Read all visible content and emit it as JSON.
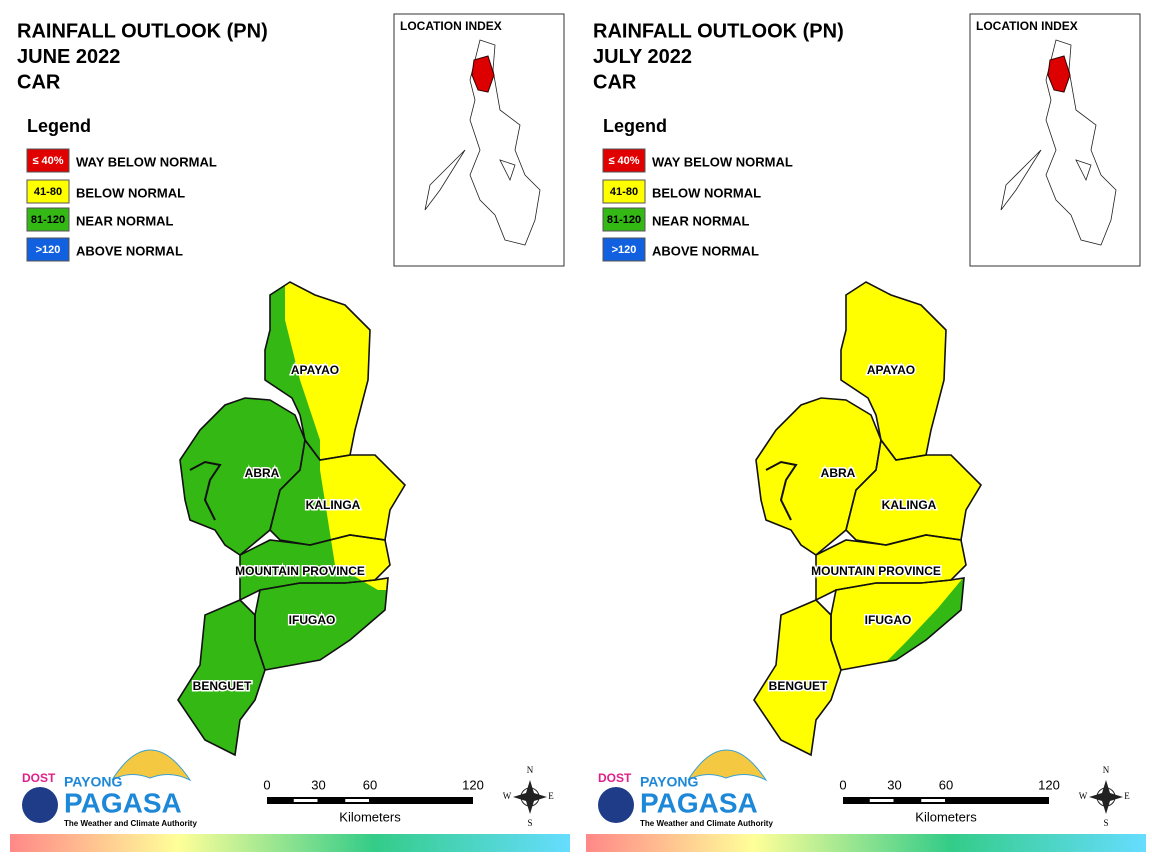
{
  "panels": [
    {
      "title": [
        "RAINFALL OUTLOOK (PN)",
        "JUNE 2022",
        "CAR"
      ],
      "legend": {
        "title": "Legend",
        "items": [
          {
            "swatch": "≤ 40%",
            "label": "WAY BELOW NORMAL",
            "color": "#e00000"
          },
          {
            "swatch": "41-80",
            "label": "BELOW NORMAL",
            "color": "#ffff00"
          },
          {
            "swatch": "81-120",
            "label": "NEAR NORMAL",
            "color": "#33b814"
          },
          {
            "swatch": ">120",
            "label": "ABOVE NORMAL",
            "color": "#1060e0"
          }
        ]
      },
      "index_title": "LOCATION INDEX",
      "regions": [
        "APAYAO",
        "ABRA",
        "KALINGA",
        "MOUNTAIN PROVINCE",
        "IFUGAO",
        "BENGUET"
      ],
      "scale": {
        "ticks": [
          0,
          30,
          60,
          120
        ],
        "unit": "Kilometers"
      },
      "compass": [
        "N",
        "E",
        "S",
        "W"
      ],
      "logo": {
        "agency": "DOST",
        "brand": "PAYONG",
        "name": "PAGASA",
        "tagline": "The Weather and Climate Authority"
      }
    },
    {
      "title": [
        "RAINFALL OUTLOOK (PN)",
        "JULY 2022",
        "CAR"
      ],
      "legend": {
        "title": "Legend",
        "items": [
          {
            "swatch": "≤ 40%",
            "label": "WAY BELOW NORMAL",
            "color": "#e00000"
          },
          {
            "swatch": "41-80",
            "label": "BELOW NORMAL",
            "color": "#ffff00"
          },
          {
            "swatch": "81-120",
            "label": "NEAR NORMAL",
            "color": "#33b814"
          },
          {
            "swatch": ">120",
            "label": "ABOVE NORMAL",
            "color": "#1060e0"
          }
        ]
      },
      "index_title": "LOCATION INDEX",
      "regions": [
        "APAYAO",
        "ABRA",
        "KALINGA",
        "MOUNTAIN PROVINCE",
        "IFUGAO",
        "BENGUET"
      ],
      "scale": {
        "ticks": [
          0,
          30,
          60,
          120
        ],
        "unit": "Kilometers"
      },
      "compass": [
        "N",
        "E",
        "S",
        "W"
      ],
      "logo": {
        "agency": "DOST",
        "brand": "PAYONG",
        "name": "PAGASA",
        "tagline": "The Weather and Climate Authority"
      }
    }
  ]
}
